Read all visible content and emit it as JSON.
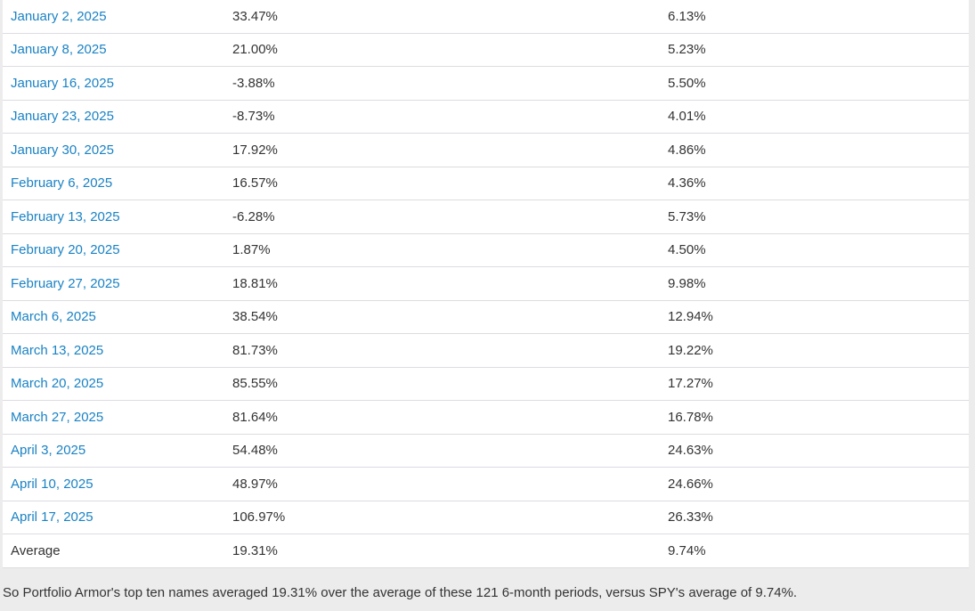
{
  "colors": {
    "page_background": "#ececec",
    "row_border": "#dcdce2",
    "link_blue": "#1a82c4",
    "text": "#333333"
  },
  "table": {
    "rows": [
      {
        "date": "January 2, 2025",
        "portfolio_return": "33.47%",
        "spy_return": "6.13%"
      },
      {
        "date": "January 8, 2025",
        "portfolio_return": "21.00%",
        "spy_return": "5.23%"
      },
      {
        "date": "January 16, 2025",
        "portfolio_return": "-3.88%",
        "spy_return": "5.50%"
      },
      {
        "date": "January 23, 2025",
        "portfolio_return": "-8.73%",
        "spy_return": "4.01%"
      },
      {
        "date": "January 30, 2025",
        "portfolio_return": "17.92%",
        "spy_return": "4.86%"
      },
      {
        "date": "February 6, 2025",
        "portfolio_return": "16.57%",
        "spy_return": "4.36%"
      },
      {
        "date": "February 13, 2025",
        "portfolio_return": "-6.28%",
        "spy_return": "5.73%"
      },
      {
        "date": "February 20, 2025",
        "portfolio_return": "1.87%",
        "spy_return": "4.50%"
      },
      {
        "date": "February 27, 2025",
        "portfolio_return": "18.81%",
        "spy_return": "9.98%"
      },
      {
        "date": "March 6, 2025",
        "portfolio_return": "38.54%",
        "spy_return": "12.94%"
      },
      {
        "date": "March 13, 2025",
        "portfolio_return": "81.73%",
        "spy_return": "19.22%"
      },
      {
        "date": "March 20, 2025",
        "portfolio_return": "85.55%",
        "spy_return": "17.27%"
      },
      {
        "date": "March 27, 2025",
        "portfolio_return": "81.64%",
        "spy_return": "16.78%"
      },
      {
        "date": "April 3, 2025",
        "portfolio_return": "54.48%",
        "spy_return": "24.63%"
      },
      {
        "date": "April 10, 2025",
        "portfolio_return": "48.97%",
        "spy_return": "24.66%"
      },
      {
        "date": "April 17, 2025",
        "portfolio_return": "106.97%",
        "spy_return": "26.33%"
      }
    ],
    "average_row": {
      "label": "Average",
      "portfolio_return": "19.31%",
      "spy_return": "9.74%"
    }
  },
  "footer": {
    "summary_text": "So Portfolio Armor's top ten names averaged 19.31% over the average of these 121 6-month periods, versus SPY's average of 9.74%."
  }
}
